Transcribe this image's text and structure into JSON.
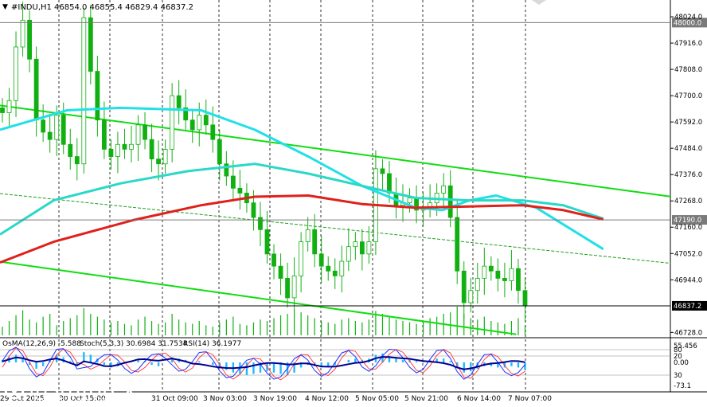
{
  "header": {
    "menu_glyph": "▼",
    "symbol_label": "#INDU,H1",
    "ohlc_text": "46854.0 46855.4 46829.4 46837.2"
  },
  "indicator_legend": {
    "osma": "OsMA(12,26,9) -5.588",
    "stoch": "Stoch(5,3,3) 30.6984 31.7534",
    "rsi": "RSI(14) 36.1977"
  },
  "watermark": {
    "brand": "instaforex",
    "tagline": "Instant Forex Trading"
  },
  "chart_data": {
    "type": "candlestick",
    "symbol": "#INDU",
    "timeframe": "H1",
    "last_price": 46837.2,
    "price_axis": {
      "ticks": [
        "48024.0",
        "47916.0",
        "47808.0",
        "47700.0",
        "47592.0",
        "47484.0",
        "47376.0",
        "47268.0",
        "47160.0",
        "47052.0",
        "46944.0",
        "46728.0"
      ],
      "range": [
        46716,
        48034
      ]
    },
    "highlighted_levels": [
      {
        "value": 48000.0,
        "label": "48000.0",
        "color": "#7a7a7a"
      },
      {
        "value": 47190.0,
        "label": "47190.0",
        "color": "#7a7a7a"
      },
      {
        "value": 46837.2,
        "label": "46837.2",
        "color": "#000000"
      }
    ],
    "time_axis": {
      "labels": [
        "29 Oct 2025",
        "30 Oct 15:00",
        "31 Oct 09:00",
        "3 Nov 03:00",
        "3 Nov 19:00",
        "4 Nov 12:00",
        "5 Nov 05:00",
        "5 Nov 21:00",
        "6 Nov 14:00",
        "7 Nov 07:00"
      ]
    },
    "close_path": [
      47630,
      47680,
      47900,
      48010,
      47850,
      47600,
      47550,
      47520,
      47620,
      47500,
      47450,
      47420,
      48020,
      47800,
      47600,
      47480,
      47450,
      47500,
      47480,
      47500,
      47580,
      47520,
      47440,
      47420,
      47480,
      47700,
      47650,
      47600,
      47560,
      47620,
      47580,
      47520,
      47420,
      47370,
      47320,
      47300,
      47260,
      47200,
      47150,
      47050,
      47000,
      46950,
      46870,
      46960,
      47100,
      47150,
      47050,
      47000,
      46980,
      46960,
      47020,
      47080,
      47100,
      47050,
      47100,
      47400,
      47380,
      47300,
      47250,
      47260,
      47280,
      47230,
      47240,
      47260,
      47300,
      47330,
      47200,
      46980,
      46850,
      46900,
      46950,
      47000,
      46980,
      46950,
      46940,
      46990,
      46900,
      46837
    ],
    "trend_channel": {
      "upper": [
        [
          0,
          47660
        ],
        [
          1,
          47286
        ]
      ],
      "middle": [
        [
          0,
          47298
        ],
        [
          1,
          47012
        ]
      ],
      "lower": [
        [
          0,
          47018
        ],
        [
          0.77,
          46720
        ]
      ]
    },
    "moving_averages": [
      {
        "color": "#21e0e8",
        "points": [
          [
            0,
            47560
          ],
          [
            0.1,
            47640
          ],
          [
            0.18,
            47650
          ],
          [
            0.3,
            47640
          ],
          [
            0.38,
            47560
          ],
          [
            0.46,
            47450
          ],
          [
            0.54,
            47330
          ],
          [
            0.62,
            47240
          ],
          [
            0.66,
            47230
          ],
          [
            0.7,
            47270
          ],
          [
            0.74,
            47290
          ],
          [
            0.8,
            47240
          ],
          [
            0.9,
            47070
          ]
        ]
      },
      {
        "color": "#2ad8c8",
        "points": [
          [
            0,
            47130
          ],
          [
            0.08,
            47270
          ],
          [
            0.18,
            47340
          ],
          [
            0.28,
            47390
          ],
          [
            0.38,
            47420
          ],
          [
            0.46,
            47380
          ],
          [
            0.54,
            47330
          ],
          [
            0.62,
            47280
          ],
          [
            0.7,
            47270
          ],
          [
            0.78,
            47270
          ],
          [
            0.84,
            47250
          ],
          [
            0.9,
            47195
          ]
        ]
      },
      {
        "color": "#e0201c",
        "points": [
          [
            0,
            47015
          ],
          [
            0.08,
            47100
          ],
          [
            0.2,
            47190
          ],
          [
            0.3,
            47250
          ],
          [
            0.38,
            47285
          ],
          [
            0.46,
            47290
          ],
          [
            0.54,
            47255
          ],
          [
            0.62,
            47240
          ],
          [
            0.7,
            47245
          ],
          [
            0.78,
            47250
          ],
          [
            0.84,
            47230
          ],
          [
            0.9,
            47192
          ]
        ]
      }
    ],
    "volume_histogram": [
      12,
      20,
      28,
      35,
      22,
      18,
      26,
      30,
      14,
      20,
      24,
      28,
      38,
      30,
      26,
      22,
      18,
      20,
      16,
      14,
      22,
      26,
      20,
      16,
      18,
      30,
      22,
      18,
      16,
      20,
      14,
      12,
      18,
      22,
      26,
      16,
      14,
      18,
      22,
      20,
      24,
      28,
      30,
      36,
      32,
      28,
      24,
      20,
      18,
      16,
      22,
      24,
      20,
      18,
      22,
      34,
      30,
      26,
      22,
      20,
      18,
      16,
      20,
      24,
      26,
      30,
      32,
      40,
      30,
      24,
      22,
      26,
      20,
      18,
      16,
      20,
      24,
      14
    ],
    "oscillator": {
      "axis_ticks": [
        "55.456",
        "80",
        "20",
        "0.00",
        "30",
        "-73.1"
      ],
      "osma": [
        2,
        4,
        6,
        3,
        -2,
        -5,
        -3,
        2,
        6,
        4,
        1,
        -2,
        8,
        6,
        3,
        -2,
        -4,
        -3,
        -1,
        0,
        2,
        1,
        -2,
        -3,
        0,
        4,
        3,
        2,
        0,
        1,
        0,
        -2,
        -4,
        -6,
        -8,
        -9,
        -10,
        -9,
        -8,
        -7,
        -8,
        -9,
        -10,
        -8,
        -4,
        -2,
        -3,
        -4,
        -3,
        -2,
        0,
        2,
        3,
        2,
        3,
        6,
        7,
        5,
        3,
        2,
        2,
        1,
        1,
        2,
        3,
        3,
        1,
        -4,
        -8,
        -7,
        -5,
        -3,
        -3,
        -4,
        -4,
        -3,
        -4,
        -6
      ]
    }
  },
  "colors": {
    "candle": "#11b011",
    "channel": "#10dd10",
    "grid": "#b0b0b0",
    "ma_fast": "#21e0e8",
    "ma_mid": "#2ad8c8",
    "ma_slow": "#e0201c",
    "osma_hist": "#1fb8ff",
    "stoch_main": "#1a2fff",
    "stoch_signal": "#ff3030",
    "rsi": "#000090"
  }
}
